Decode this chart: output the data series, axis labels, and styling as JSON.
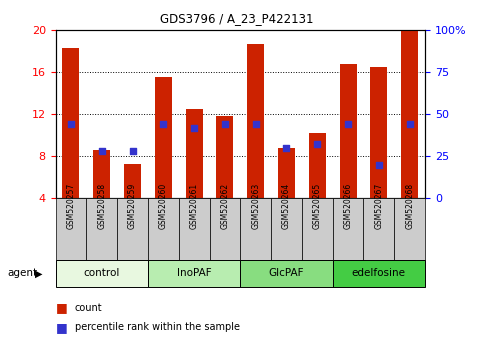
{
  "title": "GDS3796 / A_23_P422131",
  "samples": [
    "GSM520257",
    "GSM520258",
    "GSM520259",
    "GSM520260",
    "GSM520261",
    "GSM520262",
    "GSM520263",
    "GSM520264",
    "GSM520265",
    "GSM520266",
    "GSM520267",
    "GSM520268"
  ],
  "counts": [
    18.3,
    8.6,
    7.3,
    15.5,
    12.5,
    11.8,
    18.7,
    8.8,
    10.2,
    16.8,
    16.5,
    20.0
  ],
  "percentile_ranks": [
    44,
    28,
    28,
    44,
    42,
    44,
    44,
    30,
    32,
    44,
    20,
    44
  ],
  "ylim_left": [
    4,
    20
  ],
  "ylim_right": [
    0,
    100
  ],
  "yticks_left": [
    4,
    8,
    12,
    16,
    20
  ],
  "yticks_right": [
    0,
    25,
    50,
    75,
    100
  ],
  "bar_color": "#cc2200",
  "dot_color": "#3333cc",
  "groups": [
    {
      "label": "control",
      "start": 0,
      "end": 3,
      "color": "#e8f8e0"
    },
    {
      "label": "InoPAF",
      "start": 3,
      "end": 6,
      "color": "#b8edb0"
    },
    {
      "label": "GlcPAF",
      "start": 6,
      "end": 9,
      "color": "#88dd80"
    },
    {
      "label": "edelfosine",
      "start": 9,
      "end": 12,
      "color": "#44cc44"
    }
  ],
  "bar_width": 0.55,
  "legend_count_label": "count",
  "legend_pct_label": "percentile rank within the sample",
  "agent_label": "agent",
  "tick_label_bg": "#cccccc",
  "plot_bg_color": "#ffffff"
}
